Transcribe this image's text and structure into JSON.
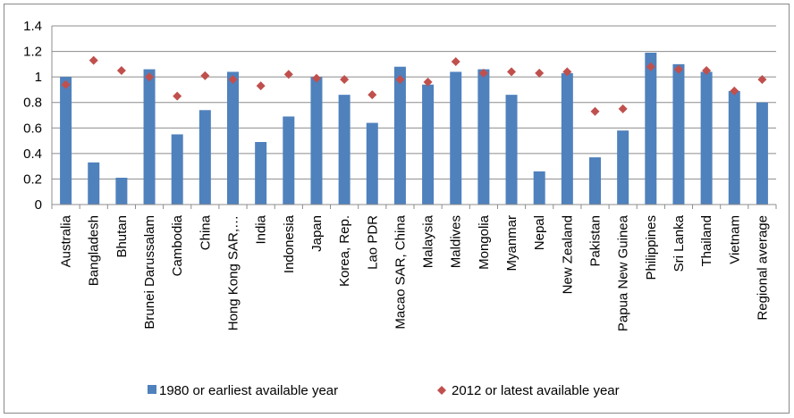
{
  "chart_data": {
    "type": "bar",
    "title": "",
    "xlabel": "",
    "ylabel": "",
    "ylim": [
      0,
      1.4
    ],
    "yticks": [
      "0",
      "0.2",
      "0.4",
      "0.6",
      "0.8",
      "1",
      "1.2",
      "1.4"
    ],
    "grid": true,
    "legend_position": "bottom",
    "categories": [
      "Australia",
      "Bangladesh",
      "Bhutan",
      "Brunei Darussalam",
      "Cambodia",
      "China",
      "Hong Kong SAR,…",
      "India",
      "Indonesia",
      "Japan",
      "Korea, Rep.",
      "Lao PDR",
      "Macao SAR, China",
      "Malaysia",
      "Maldives",
      "Mongolia",
      "Myanmar",
      "Nepal",
      "New Zealand",
      "Pakistan",
      "Papua New Guinea",
      "Philippines",
      "Sri Lanka",
      "Thailand",
      "Vietnam",
      "Regional average"
    ],
    "series": [
      {
        "name": "1980 or earliest available year",
        "kind": "bar",
        "color": "#4F81BD",
        "values": [
          1.0,
          0.33,
          0.21,
          1.06,
          0.55,
          0.74,
          1.04,
          0.49,
          0.69,
          1.0,
          0.86,
          0.64,
          1.08,
          0.94,
          1.04,
          1.06,
          0.86,
          0.26,
          1.03,
          0.37,
          0.58,
          1.19,
          1.1,
          1.04,
          0.89,
          0.8
        ]
      },
      {
        "name": "2012 or latest available year",
        "kind": "marker",
        "marker": "diamond",
        "color": "#C0504D",
        "values": [
          0.94,
          1.13,
          1.05,
          1.0,
          0.85,
          1.01,
          0.98,
          0.93,
          1.02,
          0.99,
          0.98,
          0.86,
          0.98,
          0.96,
          1.12,
          1.03,
          1.04,
          1.03,
          1.04,
          0.73,
          0.75,
          1.08,
          1.06,
          1.05,
          0.89,
          0.98
        ]
      }
    ]
  }
}
